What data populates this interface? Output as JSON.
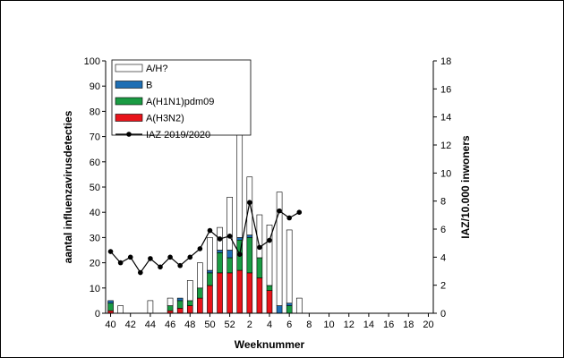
{
  "chart_data": {
    "type": "bar",
    "stacked": true,
    "xlabel": "Weeknummer",
    "ylabel": "aantal influenzavirusdetecties",
    "y2label": "IAZ/10.000 inwoners",
    "ylim": [
      0,
      100
    ],
    "y2lim": [
      0,
      18
    ],
    "yticks": [
      0,
      10,
      20,
      30,
      40,
      50,
      60,
      70,
      80,
      90,
      100
    ],
    "y2ticks": [
      0,
      2,
      4,
      6,
      8,
      10,
      12,
      14,
      16,
      18
    ],
    "grid": false,
    "legend_position": "top-left",
    "categories": [
      "40",
      "41",
      "42",
      "43",
      "44",
      "45",
      "46",
      "47",
      "48",
      "49",
      "50",
      "51",
      "52",
      "1",
      "2",
      "3",
      "4",
      "5",
      "6",
      "7",
      "8",
      "9",
      "10",
      "11",
      "12",
      "13",
      "14",
      "15",
      "16",
      "17",
      "18",
      "19",
      "20"
    ],
    "xticklabels": [
      "40",
      "42",
      "44",
      "46",
      "48",
      "50",
      "52",
      "2",
      "4",
      "6",
      "8",
      "10",
      "12",
      "14",
      "16",
      "18",
      "20"
    ],
    "series": [
      {
        "name": "A(H3N2)",
        "color": "#e8141b",
        "values": [
          1,
          0,
          0,
          0,
          0,
          0,
          1,
          2,
          3,
          6,
          11,
          16,
          16,
          17,
          16,
          14,
          9,
          0,
          0,
          0,
          0,
          0,
          0,
          0,
          0,
          0,
          0,
          0,
          0,
          0,
          0,
          0,
          0
        ]
      },
      {
        "name": "A(H1N1)pdm09",
        "color": "#1a9b43",
        "values": [
          3,
          0,
          0,
          0,
          0,
          0,
          2,
          3,
          2,
          4,
          5,
          8,
          6,
          12,
          14,
          8,
          2,
          0,
          3,
          0,
          0,
          0,
          0,
          0,
          0,
          0,
          0,
          0,
          0,
          0,
          0,
          0,
          0
        ]
      },
      {
        "name": "B",
        "color": "#1f6fb4",
        "values": [
          1,
          0,
          0,
          0,
          0,
          0,
          0,
          1,
          0,
          0,
          1,
          1,
          3,
          1,
          1,
          0,
          0,
          3,
          1,
          0,
          0,
          0,
          0,
          0,
          0,
          0,
          0,
          0,
          0,
          0,
          0,
          0,
          0
        ]
      },
      {
        "name": "A/H?",
        "color": "#ffffff",
        "values": [
          0,
          3,
          0,
          0,
          5,
          0,
          3,
          0,
          8,
          10,
          13,
          9,
          21,
          41,
          23,
          17,
          24,
          45,
          29,
          6,
          0,
          0,
          0,
          0,
          0,
          0,
          0,
          0,
          0,
          0,
          0,
          0,
          0
        ]
      }
    ],
    "line_series": {
      "name": "IAZ 2019/2020",
      "axis": "right",
      "color": "#000000",
      "values": [
        4.4,
        3.6,
        4.0,
        2.9,
        3.9,
        3.3,
        4.0,
        3.4,
        4.0,
        4.6,
        5.9,
        5.3,
        5.5,
        4.2,
        7.9,
        4.7,
        5.2,
        7.3,
        6.8,
        7.2,
        null,
        null,
        null,
        null,
        null,
        null,
        null,
        null,
        null,
        null,
        null,
        null,
        null
      ]
    }
  }
}
